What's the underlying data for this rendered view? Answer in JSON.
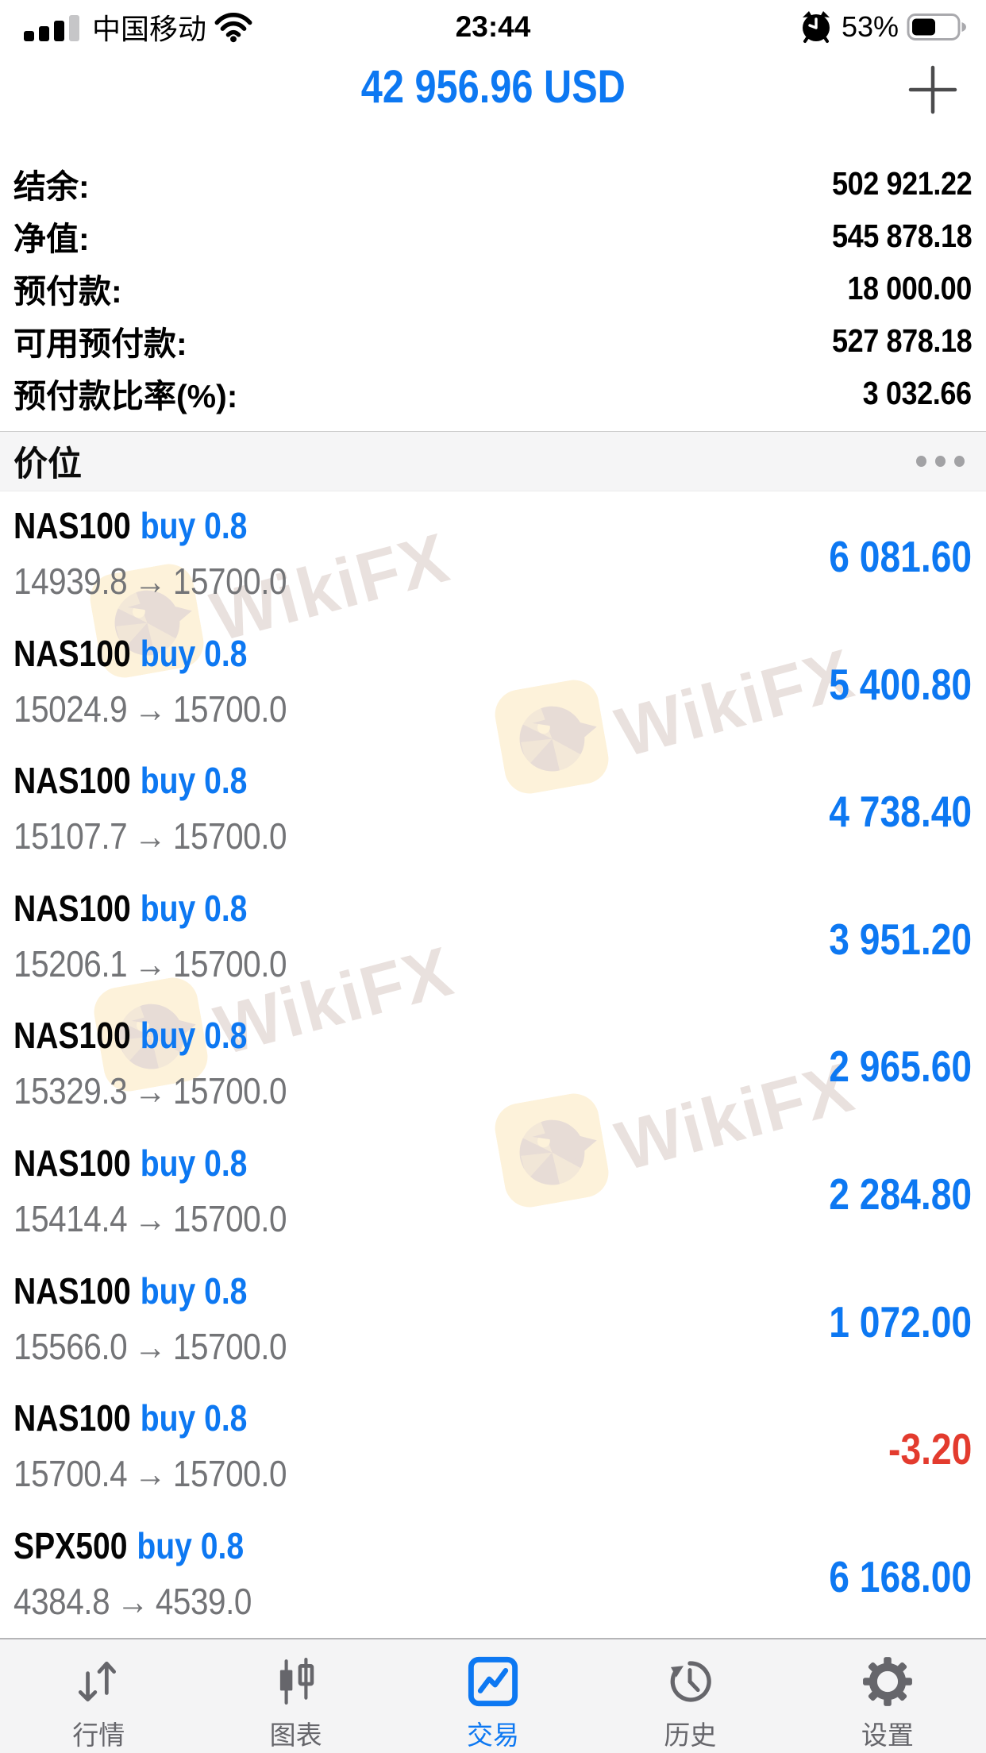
{
  "colors": {
    "accent_blue": "#0d78f2",
    "loss_red": "#e33b2e",
    "price_gray": "#737477",
    "watermark_cream": "#fdf2da",
    "watermark_glyph": "#e7dcd6"
  },
  "status_bar": {
    "carrier": "中国移动",
    "time": "23:44",
    "battery_percent": "53%",
    "icons": [
      "signal-bars-icon",
      "wifi-icon",
      "alarm-clock-icon",
      "battery-icon"
    ]
  },
  "header": {
    "title": "42 956.96 USD",
    "add_button": "+"
  },
  "summary": {
    "rows": [
      {
        "label": "结余:",
        "value": "502 921.22"
      },
      {
        "label": "净值:",
        "value": "545 878.18"
      },
      {
        "label": "预付款:",
        "value": "18 000.00"
      },
      {
        "label": "可用预付款:",
        "value": "527 878.18"
      },
      {
        "label": "预付款比率(%):",
        "value": "3 032.66"
      }
    ]
  },
  "section": {
    "title": "价位",
    "menu_icon": "ellipsis-icon"
  },
  "positions": {
    "arrow": "→",
    "rows": [
      {
        "symbol": "NAS100",
        "side": "buy 0.8",
        "open": "14939.8",
        "current": "15700.0",
        "profit": "6 081.60",
        "negative": false
      },
      {
        "symbol": "NAS100",
        "side": "buy 0.8",
        "open": "15024.9",
        "current": "15700.0",
        "profit": "5 400.80",
        "negative": false
      },
      {
        "symbol": "NAS100",
        "side": "buy 0.8",
        "open": "15107.7",
        "current": "15700.0",
        "profit": "4 738.40",
        "negative": false
      },
      {
        "symbol": "NAS100",
        "side": "buy 0.8",
        "open": "15206.1",
        "current": "15700.0",
        "profit": "3 951.20",
        "negative": false
      },
      {
        "symbol": "NAS100",
        "side": "buy 0.8",
        "open": "15329.3",
        "current": "15700.0",
        "profit": "2 965.60",
        "negative": false
      },
      {
        "symbol": "NAS100",
        "side": "buy 0.8",
        "open": "15414.4",
        "current": "15700.0",
        "profit": "2 284.80",
        "negative": false
      },
      {
        "symbol": "NAS100",
        "side": "buy 0.8",
        "open": "15566.0",
        "current": "15700.0",
        "profit": "1 072.00",
        "negative": false
      },
      {
        "symbol": "NAS100",
        "side": "buy 0.8",
        "open": "15700.4",
        "current": "15700.0",
        "profit": "-3.20",
        "negative": true
      },
      {
        "symbol": "SPX500",
        "side": "buy 0.8",
        "open": "4384.8",
        "current": "4539.0",
        "profit": "6 168.00",
        "negative": false
      }
    ]
  },
  "tab_bar": {
    "items": [
      {
        "label": "行情",
        "icon": "arrows-up-down-icon",
        "active": false
      },
      {
        "label": "图表",
        "icon": "candlestick-chart-icon",
        "active": false
      },
      {
        "label": "交易",
        "icon": "trade-chart-icon",
        "active": true
      },
      {
        "label": "历史",
        "icon": "history-clock-icon",
        "active": false
      },
      {
        "label": "设置",
        "icon": "gear-icon",
        "active": false
      }
    ]
  },
  "watermark": {
    "text": "WikiFX",
    "logo": "wikifx-eagle-logo"
  }
}
